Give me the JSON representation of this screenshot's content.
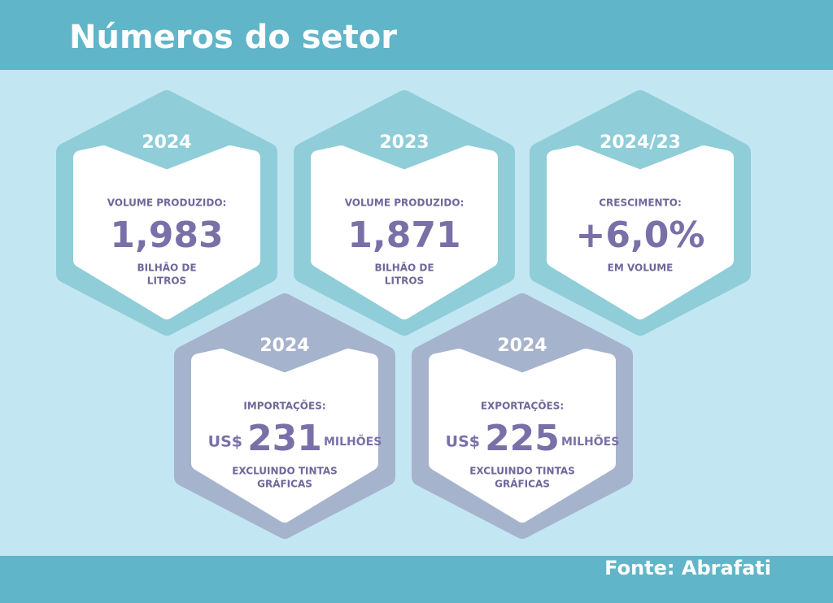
{
  "header": {
    "title": "Números do setor"
  },
  "cards": [
    {
      "year": "2024",
      "label": "VOLUME PRODUZIDO:",
      "value": "1,983",
      "notes": [
        "BILHÃO DE",
        "LITROS"
      ]
    },
    {
      "year": "2023",
      "label": "VOLUME PRODUZIDO:",
      "value": "1,871",
      "notes": [
        "BILHÃO DE",
        "LITROS"
      ]
    },
    {
      "year": "2024/23",
      "label": "CRESCIMENTO:",
      "value": "+6,0%",
      "notes": [
        "EM VOLUME"
      ]
    },
    {
      "year": "2024",
      "label": "IMPORTAÇÕES:",
      "prefix": "US$",
      "value": "231",
      "suffix": "MILHÕES",
      "notes": [
        "EXCLUINDO TINTAS",
        "GRÁFICAS"
      ]
    },
    {
      "year": "2024",
      "label": "EXPORTAÇÕES:",
      "prefix": "US$",
      "value": "225",
      "suffix": "MILHÕES",
      "notes": [
        "EXCLUINDO TINTAS",
        "GRÁFICAS"
      ]
    }
  ],
  "footer": {
    "source": "Fonte: Abrafati"
  }
}
